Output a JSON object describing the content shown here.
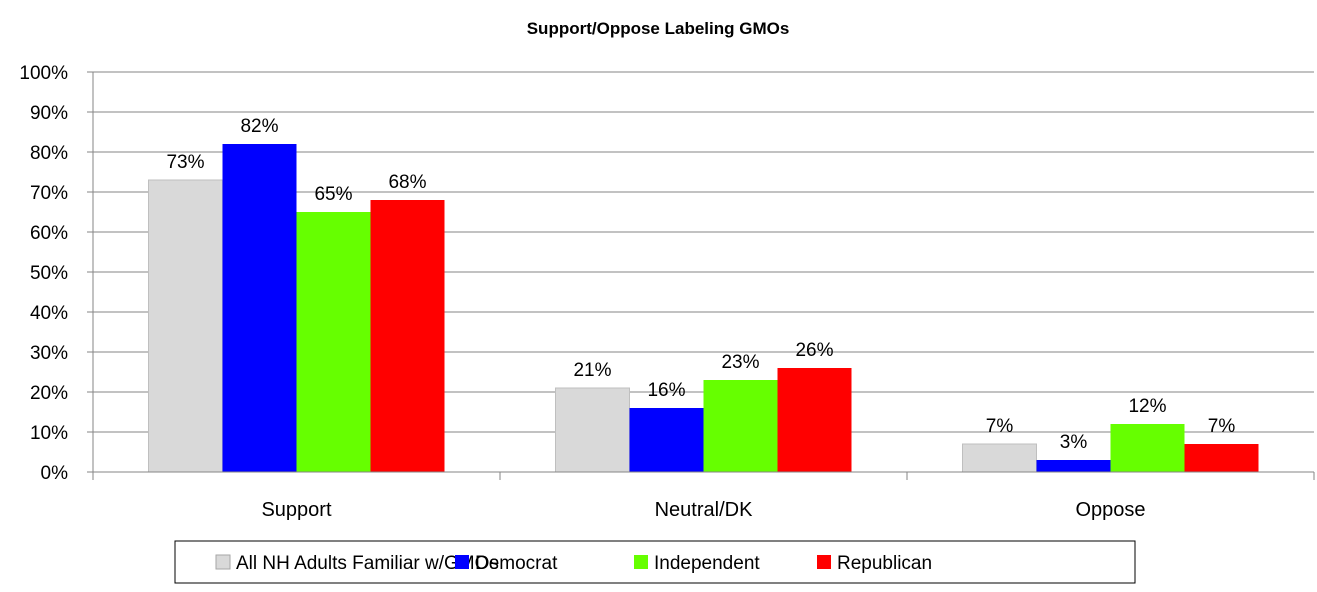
{
  "chart_data": {
    "type": "bar",
    "title": "Support/Oppose Labeling GMOs",
    "categories": [
      "Support",
      "Neutral/DK",
      "Oppose"
    ],
    "series": [
      {
        "name": "All NH Adults Familiar w/GMOs",
        "values": [
          73,
          21,
          7
        ],
        "color": "#d9d9d9"
      },
      {
        "name": "Democrat",
        "values": [
          82,
          16,
          3
        ],
        "color": "#0000ff"
      },
      {
        "name": "Independent",
        "values": [
          65,
          23,
          12
        ],
        "color": "#66ff00"
      },
      {
        "name": "Republican",
        "values": [
          68,
          26,
          7
        ],
        "color": "#ff0000"
      }
    ],
    "ylim": [
      0,
      100
    ],
    "yticks": [
      0,
      10,
      20,
      30,
      40,
      50,
      60,
      70,
      80,
      90,
      100
    ],
    "ytick_labels": [
      "0%",
      "10%",
      "20%",
      "30%",
      "40%",
      "50%",
      "60%",
      "70%",
      "80%",
      "90%",
      "100%"
    ],
    "value_suffix": "%",
    "grid": true,
    "legend_position": "bottom"
  }
}
